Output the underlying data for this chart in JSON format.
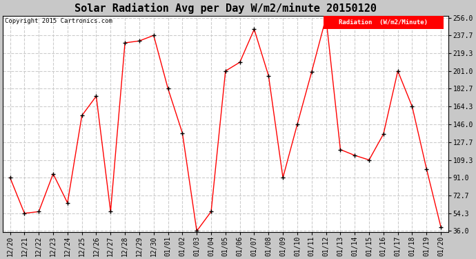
{
  "title": "Solar Radiation Avg per Day W/m2/minute 20150120",
  "copyright": "Copyright 2015 Cartronics.com",
  "legend_label": "Radiation  (W/m2/Minute)",
  "labels": [
    "12/20",
    "12/21",
    "12/22",
    "12/23",
    "12/24",
    "12/25",
    "12/26",
    "12/27",
    "12/28",
    "12/29",
    "12/30",
    "01/01",
    "01/02",
    "01/03",
    "01/04",
    "01/05",
    "01/06",
    "01/07",
    "01/08",
    "01/09",
    "01/10",
    "01/11",
    "01/12",
    "01/13",
    "01/14",
    "01/15",
    "01/16",
    "01/17",
    "01/18",
    "01/19",
    "01/20"
  ],
  "values": [
    91.0,
    54.3,
    56.0,
    95.0,
    65.0,
    155.0,
    175.0,
    56.0,
    230.0,
    232.0,
    237.7,
    182.7,
    137.0,
    36.0,
    56.0,
    201.0,
    210.0,
    244.0,
    196.0,
    91.0,
    146.0,
    200.0,
    256.0,
    120.0,
    114.0,
    109.3,
    136.0,
    201.0,
    164.3,
    100.0,
    40.0
  ],
  "line_color": "red",
  "marker_color": "black",
  "fig_bg_color": "#c8c8c8",
  "plot_bg_color": "#ffffff",
  "grid_color": "#cccccc",
  "ymin": 36.0,
  "ymax": 256.0,
  "yticks": [
    36.0,
    54.3,
    72.7,
    91.0,
    109.3,
    127.7,
    146.0,
    164.3,
    182.7,
    201.0,
    219.3,
    237.7,
    256.0
  ],
  "title_fontsize": 11,
  "tick_fontsize": 7,
  "legend_bg_color": "red",
  "legend_text_color": "white"
}
